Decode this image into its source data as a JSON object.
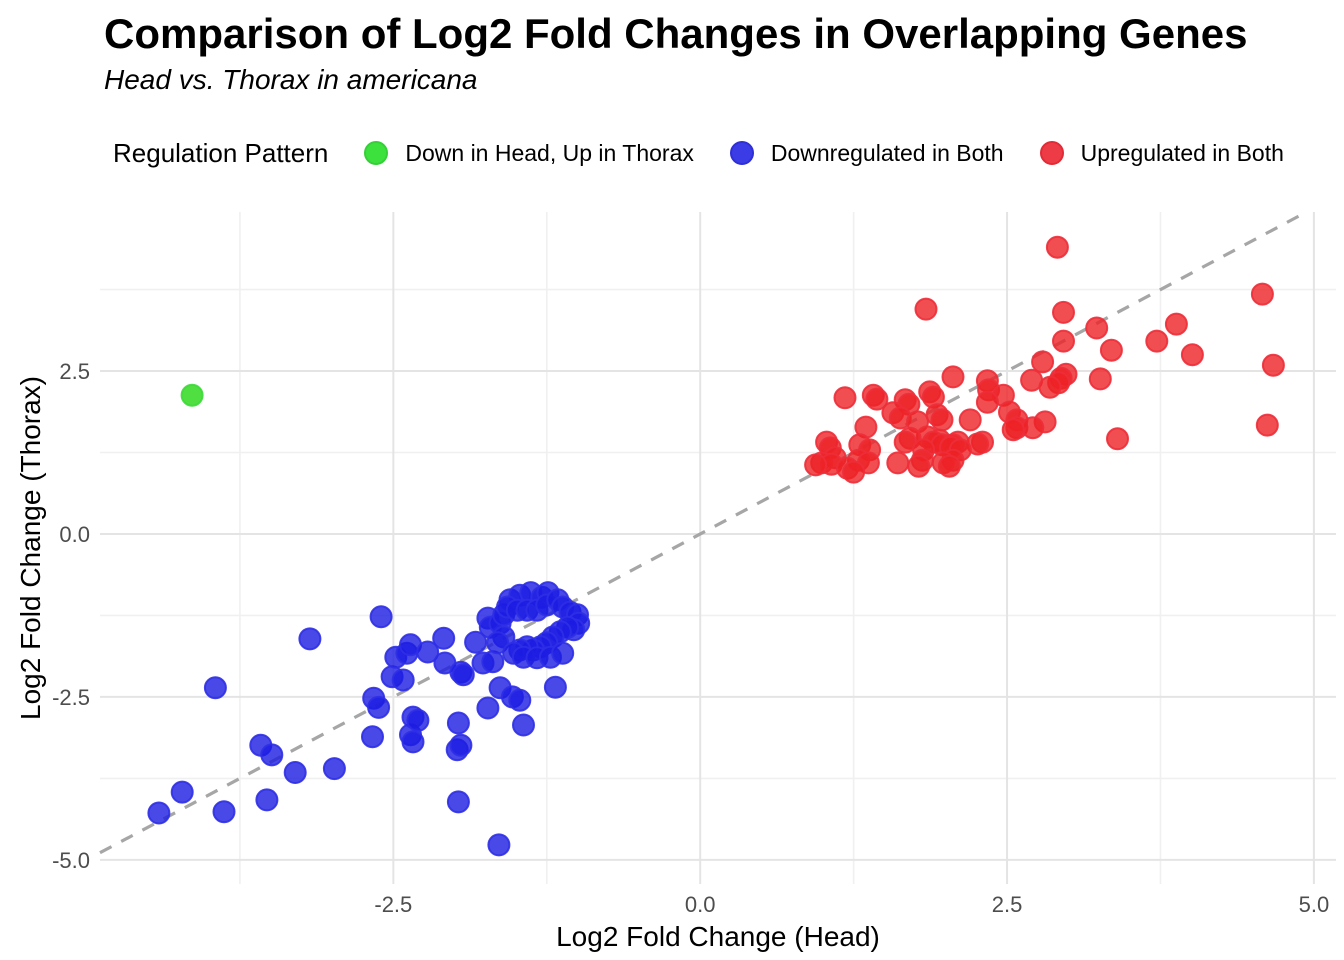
{
  "title": "Comparison of Log2 Fold Changes in Overlapping Genes",
  "subtitle": "Head vs. Thorax in americana",
  "legend": {
    "title": "Regulation Pattern",
    "items": [
      {
        "label": "Down in Head, Up in Thorax",
        "color": "#3de13d",
        "border": "#35d038"
      },
      {
        "label": "Downregulated in Both",
        "color": "#3c3ce6",
        "border": "#2f2fd8"
      },
      {
        "label": "Upregulated in Both",
        "color": "#ee3c46",
        "border": "#e22b36"
      }
    ]
  },
  "chart_data": {
    "type": "scatter",
    "title": "Comparison of Log2 Fold Changes in Overlapping Genes",
    "subtitle": "Head vs. Thorax in americana",
    "xlabel": "Log2 Fold Change (Head)",
    "ylabel": "Log2 Fold Change (Thorax)",
    "legend_position": "top",
    "grid": true,
    "xlim": [
      -4.89,
      5.18
    ],
    "ylim": [
      -5.37,
      4.94
    ],
    "x_ticks": [
      -2.5,
      0.0,
      2.5,
      5.0
    ],
    "x_tick_labels": [
      "-2.5",
      "0.0",
      "2.5",
      "5.0"
    ],
    "y_ticks": [
      2.5,
      0.0,
      -2.5,
      -5.0
    ],
    "y_tick_labels": [
      "2.5",
      "0.0",
      "-2.5",
      "-5.0"
    ],
    "x_minor": [
      -3.75,
      -1.25,
      1.25,
      3.75
    ],
    "y_minor": [
      3.75,
      1.25,
      -1.25,
      -3.75
    ],
    "identity_line": {
      "style": "dashed",
      "color": "#a6a6a6",
      "from": -4.89,
      "to": 4.94
    },
    "colors": {
      "grid_major": "#e4e4e4",
      "grid_minor": "#f0f0f0",
      "tick_text": "#4d4d4d",
      "axis_title_text": "#000000"
    },
    "series": [
      {
        "name": "Down in Head, Up in Thorax",
        "fill": "#2ad816",
        "fill_opacity": 0.82,
        "stroke": "#3dd93a",
        "points": [
          [
            -4.14,
            2.13
          ]
        ]
      },
      {
        "name": "Downregulated in Both",
        "fill": "#1b1be2",
        "fill_opacity": 0.8,
        "stroke": "#2f2fe6",
        "points": [
          [
            -4.41,
            -4.28
          ],
          [
            -4.22,
            -3.96
          ],
          [
            -3.95,
            -2.36
          ],
          [
            -3.88,
            -4.26
          ],
          [
            -3.58,
            -3.24
          ],
          [
            -3.53,
            -4.08
          ],
          [
            -3.49,
            -3.39
          ],
          [
            -3.3,
            -3.66
          ],
          [
            -3.18,
            -1.61
          ],
          [
            -2.98,
            -3.6
          ],
          [
            -2.67,
            -3.11
          ],
          [
            -2.66,
            -2.52
          ],
          [
            -2.62,
            -2.66
          ],
          [
            -2.6,
            -1.27
          ],
          [
            -2.51,
            -2.19
          ],
          [
            -2.48,
            -1.89
          ],
          [
            -2.42,
            -2.24
          ],
          [
            -2.39,
            -1.83
          ],
          [
            -2.36,
            -1.7
          ],
          [
            -2.36,
            -3.08
          ],
          [
            -2.34,
            -3.19
          ],
          [
            -2.34,
            -2.81
          ],
          [
            -2.3,
            -2.86
          ],
          [
            -2.22,
            -1.81
          ],
          [
            -2.09,
            -1.6
          ],
          [
            -2.08,
            -1.98
          ],
          [
            -1.98,
            -3.31
          ],
          [
            -1.97,
            -4.11
          ],
          [
            -1.97,
            -2.9
          ],
          [
            -1.95,
            -3.24
          ],
          [
            -1.95,
            -2.12
          ],
          [
            -1.93,
            -2.16
          ],
          [
            -1.83,
            -1.66
          ],
          [
            -1.77,
            -1.98
          ],
          [
            -1.73,
            -2.67
          ],
          [
            -1.73,
            -1.29
          ],
          [
            -1.71,
            -1.43
          ],
          [
            -1.69,
            -1.96
          ],
          [
            -1.64,
            -4.77
          ],
          [
            -1.63,
            -2.36
          ],
          [
            -1.63,
            -1.37
          ],
          [
            -1.6,
            -1.24
          ],
          [
            -1.6,
            -1.58
          ],
          [
            -1.65,
            -1.67
          ],
          [
            -1.53,
            -2.5
          ],
          [
            -1.47,
            -2.55
          ],
          [
            -1.44,
            -2.93
          ],
          [
            -1.18,
            -2.35
          ],
          [
            -1.55,
            -1.01
          ],
          [
            -1.47,
            -0.94
          ],
          [
            -1.38,
            -0.9
          ],
          [
            -1.29,
            -0.97
          ],
          [
            -1.24,
            -0.9
          ],
          [
            -1.57,
            -1.12
          ],
          [
            -1.49,
            -1.17
          ],
          [
            -1.41,
            -1.17
          ],
          [
            -1.33,
            -1.17
          ],
          [
            -1.25,
            -1.09
          ],
          [
            -1.16,
            -1.01
          ],
          [
            -1.12,
            -1.12
          ],
          [
            -1.06,
            -1.2
          ],
          [
            -1.0,
            -1.24
          ],
          [
            -0.99,
            -1.37
          ],
          [
            -1.03,
            -1.47
          ],
          [
            -1.08,
            -1.43
          ],
          [
            -1.14,
            -1.5
          ],
          [
            -1.2,
            -1.58
          ],
          [
            -1.25,
            -1.67
          ],
          [
            -1.3,
            -1.73
          ],
          [
            -1.36,
            -1.78
          ],
          [
            -1.41,
            -1.73
          ],
          [
            -1.47,
            -1.78
          ],
          [
            -1.52,
            -1.83
          ],
          [
            -1.44,
            -1.89
          ],
          [
            -1.33,
            -1.9
          ],
          [
            -1.22,
            -1.89
          ],
          [
            -1.12,
            -1.83
          ]
        ]
      },
      {
        "name": "Upregulated in Both",
        "fill": "#ec2226",
        "fill_opacity": 0.8,
        "stroke": "#ed2e38",
        "points": [
          [
            2.91,
            4.4
          ],
          [
            4.58,
            3.68
          ],
          [
            1.84,
            3.45
          ],
          [
            2.96,
            3.4
          ],
          [
            3.88,
            3.22
          ],
          [
            3.23,
            3.16
          ],
          [
            3.72,
            2.96
          ],
          [
            2.96,
            2.96
          ],
          [
            3.35,
            2.82
          ],
          [
            4.01,
            2.75
          ],
          [
            2.79,
            2.64
          ],
          [
            4.67,
            2.59
          ],
          [
            2.98,
            2.45
          ],
          [
            2.06,
            2.41
          ],
          [
            2.94,
            2.39
          ],
          [
            3.26,
            2.38
          ],
          [
            2.7,
            2.36
          ],
          [
            2.34,
            2.35
          ],
          [
            2.92,
            2.32
          ],
          [
            2.85,
            2.25
          ],
          [
            2.35,
            2.21
          ],
          [
            1.87,
            2.18
          ],
          [
            1.41,
            2.13
          ],
          [
            2.47,
            2.13
          ],
          [
            1.18,
            2.09
          ],
          [
            1.44,
            2.07
          ],
          [
            1.67,
            2.06
          ],
          [
            1.9,
            2.1
          ],
          [
            2.34,
            2.02
          ],
          [
            1.7,
            1.99
          ],
          [
            2.52,
            1.87
          ],
          [
            1.57,
            1.86
          ],
          [
            1.93,
            1.83
          ],
          [
            1.63,
            1.78
          ],
          [
            1.97,
            1.75
          ],
          [
            2.2,
            1.75
          ],
          [
            2.58,
            1.75
          ],
          [
            1.77,
            1.72
          ],
          [
            2.81,
            1.72
          ],
          [
            4.62,
            1.67
          ],
          [
            1.35,
            1.64
          ],
          [
            2.58,
            1.63
          ],
          [
            2.71,
            1.63
          ],
          [
            2.55,
            1.6
          ],
          [
            1.85,
            1.49
          ],
          [
            1.71,
            1.47
          ],
          [
            3.4,
            1.46
          ],
          [
            1.95,
            1.44
          ],
          [
            1.03,
            1.41
          ],
          [
            1.67,
            1.41
          ],
          [
            1.9,
            1.41
          ],
          [
            2.1,
            1.41
          ],
          [
            2.3,
            1.41
          ],
          [
            2.26,
            1.38
          ],
          [
            1.3,
            1.37
          ],
          [
            1.97,
            1.37
          ],
          [
            2.06,
            1.37
          ],
          [
            2.04,
            1.33
          ],
          [
            1.06,
            1.32
          ],
          [
            1.38,
            1.29
          ],
          [
            1.82,
            1.29
          ],
          [
            2.12,
            1.29
          ],
          [
            1.1,
            1.17
          ],
          [
            1.29,
            1.13
          ],
          [
            1.81,
            1.13
          ],
          [
            2.06,
            1.13
          ],
          [
            0.99,
            1.09
          ],
          [
            1.37,
            1.09
          ],
          [
            1.61,
            1.09
          ],
          [
            1.98,
            1.09
          ],
          [
            1.07,
            1.07
          ],
          [
            0.94,
            1.06
          ],
          [
            1.78,
            1.04
          ],
          [
            2.03,
            1.04
          ],
          [
            1.2,
            1.01
          ],
          [
            1.25,
            0.95
          ]
        ]
      }
    ]
  }
}
